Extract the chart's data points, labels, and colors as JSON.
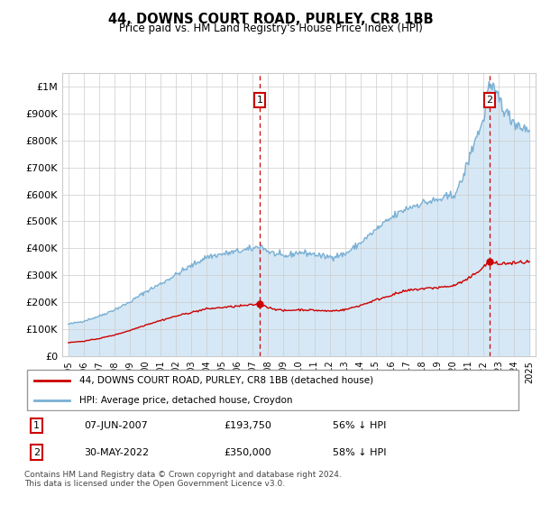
{
  "title": "44, DOWNS COURT ROAD, PURLEY, CR8 1BB",
  "subtitle": "Price paid vs. HM Land Registry's House Price Index (HPI)",
  "legend_line1": "44, DOWNS COURT ROAD, PURLEY, CR8 1BB (detached house)",
  "legend_line2": "HPI: Average price, detached house, Croydon",
  "footnote": "Contains HM Land Registry data © Crown copyright and database right 2024.\nThis data is licensed under the Open Government Licence v3.0.",
  "table": [
    {
      "num": "1",
      "date": "07-JUN-2007",
      "price": "£193,750",
      "hpi": "56% ↓ HPI"
    },
    {
      "num": "2",
      "date": "30-MAY-2022",
      "price": "£350,000",
      "hpi": "58% ↓ HPI"
    }
  ],
  "red_line_color": "#cc0000",
  "blue_line_color": "#7ab0d4",
  "blue_fill_color": "#d6e8f5",
  "ylim": [
    0,
    1050000
  ],
  "yticks": [
    0,
    100000,
    200000,
    300000,
    400000,
    500000,
    600000,
    700000,
    800000,
    900000,
    1000000
  ],
  "ytick_labels": [
    "£0",
    "£100K",
    "£200K",
    "£300K",
    "£400K",
    "£500K",
    "£600K",
    "£700K",
    "£800K",
    "£900K",
    "£1M"
  ],
  "sale1_x": 2007.44,
  "sale1_y": 193750,
  "sale2_x": 2022.41,
  "sale2_y": 350000,
  "xtick_years": [
    1995,
    1996,
    1997,
    1998,
    1999,
    2000,
    2001,
    2002,
    2003,
    2004,
    2005,
    2006,
    2007,
    2008,
    2009,
    2010,
    2011,
    2012,
    2013,
    2014,
    2015,
    2016,
    2017,
    2018,
    2019,
    2020,
    2021,
    2022,
    2023,
    2024,
    2025
  ],
  "bg_color": "#f0f4f8"
}
